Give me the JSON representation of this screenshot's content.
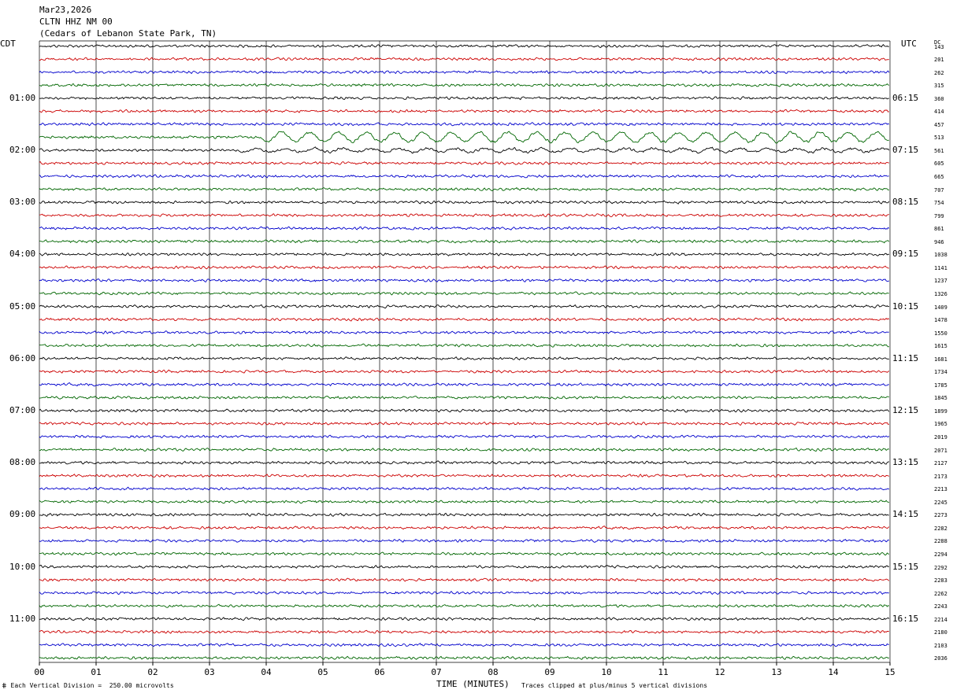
{
  "header": {
    "date": "Mar23,2026",
    "station": "CLTN HHZ NM 00",
    "location": "(Cedars of Lebanon State Park, TN)"
  },
  "left_tz": "CDT",
  "right_tz": "UTC",
  "dc_label": "DC",
  "left_hours": [
    "01:00",
    "02:00",
    "03:00",
    "04:00",
    "05:00",
    "06:00",
    "07:00",
    "08:00",
    "09:00",
    "10:00",
    "11:00"
  ],
  "right_hours": [
    "06:15",
    "07:15",
    "08:15",
    "09:15",
    "10:15",
    "11:15",
    "12:15",
    "13:15",
    "14:15",
    "15:15",
    "16:15"
  ],
  "footer": {
    "scale": "Each Vertical Division =  250.00 microvolts",
    "xlabel": "TIME (MINUTES)",
    "clip_note": "Traces clipped at plus/minus 5 vertical divisions"
  },
  "chart_data": {
    "type": "line",
    "title": "CLTN HHZ NM 00",
    "xlabel": "TIME (MINUTES)",
    "ylabel": "",
    "xlim": [
      0,
      15
    ],
    "x_ticks": [
      "00",
      "01",
      "02",
      "03",
      "04",
      "05",
      "06",
      "07",
      "08",
      "09",
      "10",
      "11",
      "12",
      "13",
      "14",
      "15"
    ],
    "trace_colors": [
      "#000000",
      "#cc0000",
      "#0000cc",
      "#006600"
    ],
    "dc_offsets": [
      143,
      201,
      262,
      315,
      360,
      414,
      457,
      513,
      561,
      605,
      665,
      707,
      754,
      799,
      861,
      946,
      1038,
      1141,
      1237,
      1326,
      1409,
      1478,
      1550,
      1615,
      1681,
      1734,
      1785,
      1845,
      1899,
      1965,
      2019,
      2071,
      2127,
      2173,
      2213,
      2245,
      2273,
      2282,
      2288,
      2294,
      2292,
      2283,
      2262,
      2243,
      2214,
      2180,
      2103,
      2036
    ],
    "grid": true
  }
}
